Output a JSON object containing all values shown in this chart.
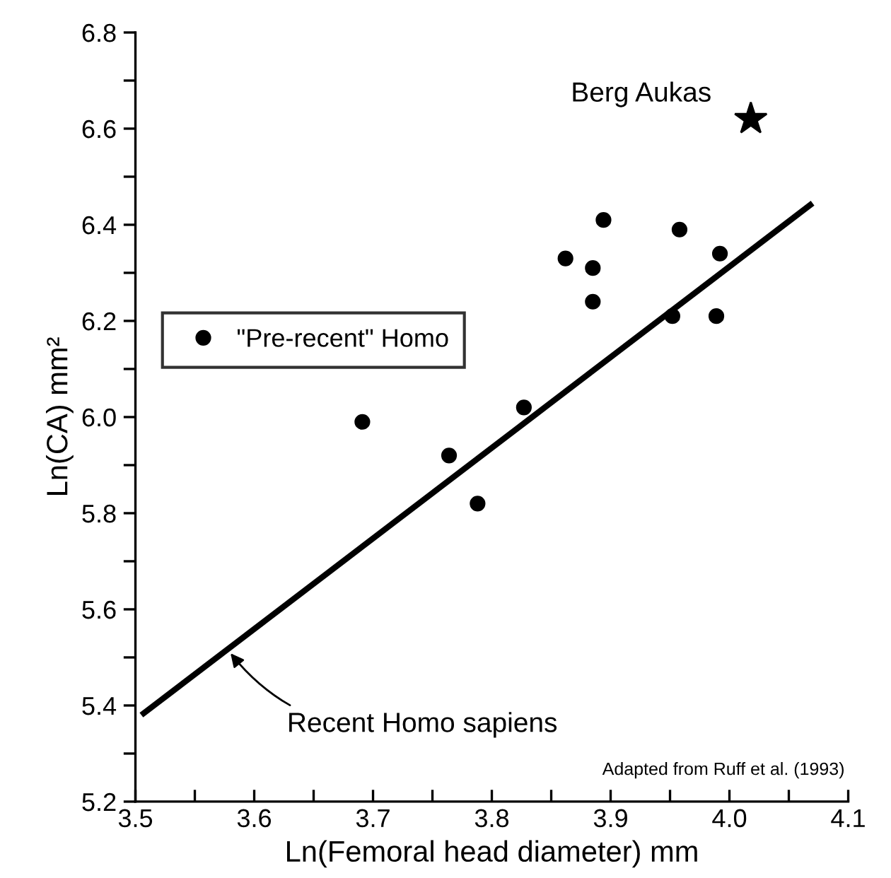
{
  "chart_data": {
    "type": "scatter",
    "xlabel": "Ln(Femoral head diameter) mm",
    "ylabel": "Ln(CA) mm²",
    "xlim": [
      3.5,
      4.1
    ],
    "ylim": [
      5.2,
      6.8
    ],
    "xticks": [
      3.5,
      {
        "value": 3.55,
        "label": null
      },
      3.6,
      {
        "value": 3.65,
        "label": null
      },
      3.7,
      {
        "value": 3.75,
        "label": null
      },
      3.8,
      {
        "value": 3.85,
        "label": null
      },
      3.9,
      {
        "value": 3.95,
        "label": null
      },
      {
        "value": 4.0,
        "label": "4.0"
      },
      {
        "value": 4.05,
        "label": null
      },
      4.1
    ],
    "yticks": [
      5.2,
      {
        "value": 5.3,
        "label": null
      },
      5.4,
      {
        "value": 5.5,
        "label": null
      },
      5.6,
      {
        "value": 5.7,
        "label": null
      },
      5.8,
      {
        "value": 5.9,
        "label": null
      },
      {
        "value": 6.0,
        "label": "6.0"
      },
      {
        "value": 6.1,
        "label": null
      },
      6.2,
      {
        "value": 6.3,
        "label": null
      },
      6.4,
      {
        "value": 6.5,
        "label": null
      },
      6.6,
      {
        "value": 6.7,
        "label": null
      },
      6.8
    ],
    "grid": false,
    "legend": "left",
    "series": [
      {
        "name": "\"Pre-recent\" Homo",
        "marker": "circle",
        "color": "#000000",
        "x": [
          3.691,
          3.764,
          3.788,
          3.827,
          3.862,
          3.885,
          3.885,
          3.894,
          3.952,
          3.958,
          3.989,
          3.992
        ],
        "values": [
          5.99,
          5.92,
          5.82,
          6.02,
          6.33,
          6.31,
          6.24,
          6.41,
          6.21,
          6.39,
          6.21,
          6.34
        ]
      },
      {
        "marker": "star",
        "color": "#000000",
        "x": [
          4.018
        ],
        "values": [
          6.62
        ]
      },
      {
        "type": "line",
        "marker": "none",
        "line_style": "solid",
        "color": "#000000",
        "x": [
          3.505,
          4.07
        ],
        "values": [
          5.38,
          6.445
        ]
      }
    ],
    "annotations": [
      {
        "text": "Berg Aukas",
        "x": 4.018,
        "y": 6.62
      },
      {
        "text": "Recent Homo sapiens",
        "x": 3.578,
        "y": 5.515
      },
      "Adapted from Ruff et al. (1993)"
    ]
  }
}
